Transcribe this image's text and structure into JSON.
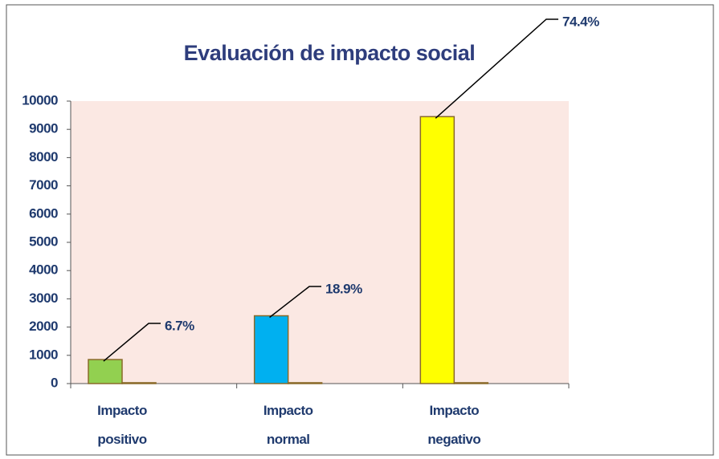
{
  "chart_data": {
    "type": "bar",
    "title": "Evaluación de impacto social",
    "categories": [
      "Impacto positivo",
      "Impacto normal",
      "Impacto negativo"
    ],
    "series": [
      {
        "color": "#92d050",
        "values": [
          850,
          2400,
          9450
        ]
      },
      {
        "color": "#c0504d",
        "values": [
          30,
          30,
          30
        ]
      }
    ],
    "annotations": [
      "6.7%",
      "18.9%",
      "74.4%"
    ],
    "ylim": [
      0,
      10000
    ],
    "yticks": [
      0,
      1000,
      2000,
      3000,
      4000,
      5000,
      6000,
      7000,
      8000,
      9000,
      10000
    ],
    "bar_colors": [
      "#92d050",
      "#00b0f0",
      "#ffff00"
    ],
    "grid": false
  }
}
